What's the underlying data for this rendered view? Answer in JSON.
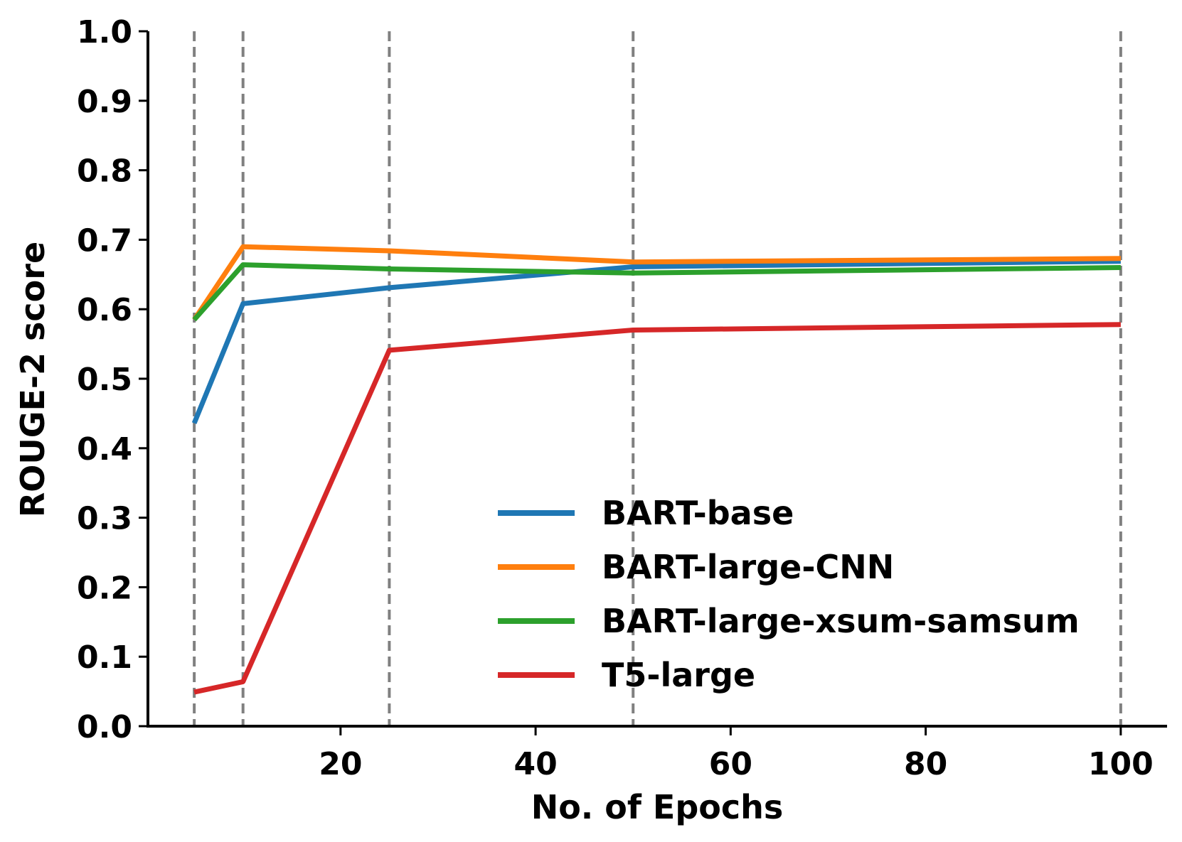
{
  "chart_data": {
    "type": "line",
    "xlabel": "No. of Epochs",
    "ylabel": "ROUGE-2 score",
    "xlim": [
      0.25,
      104.75
    ],
    "ylim": [
      0.0,
      1.0
    ],
    "x_ticks": [
      20,
      40,
      60,
      80,
      100
    ],
    "x_tick_labels": [
      "20",
      "40",
      "60",
      "80",
      "100"
    ],
    "y_ticks": [
      0.0,
      0.1,
      0.2,
      0.3,
      0.4,
      0.5,
      0.6,
      0.7,
      0.8,
      0.9,
      1.0
    ],
    "y_tick_labels": [
      "0.0",
      "0.1",
      "0.2",
      "0.3",
      "0.4",
      "0.5",
      "0.6",
      "0.7",
      "0.8",
      "0.9",
      "1.0"
    ],
    "vlines": [
      5,
      10,
      25,
      50,
      100
    ],
    "vline_color": "#808080",
    "grid": false,
    "legend_position": "lower-right",
    "x": [
      5,
      10,
      25,
      50,
      100
    ],
    "series": [
      {
        "name": "BART-base",
        "color": "#1f77b4",
        "values": [
          0.436,
          0.608,
          0.631,
          0.661,
          0.669
        ]
      },
      {
        "name": "BART-large-CNN",
        "color": "#ff7f0e",
        "values": [
          0.585,
          0.69,
          0.684,
          0.668,
          0.673
        ]
      },
      {
        "name": "BART-large-xsum-samsum",
        "color": "#2ca02c",
        "values": [
          0.585,
          0.664,
          0.658,
          0.652,
          0.66
        ]
      },
      {
        "name": "T5-large",
        "color": "#d62728",
        "values": [
          0.049,
          0.064,
          0.541,
          0.57,
          0.578
        ]
      }
    ]
  }
}
